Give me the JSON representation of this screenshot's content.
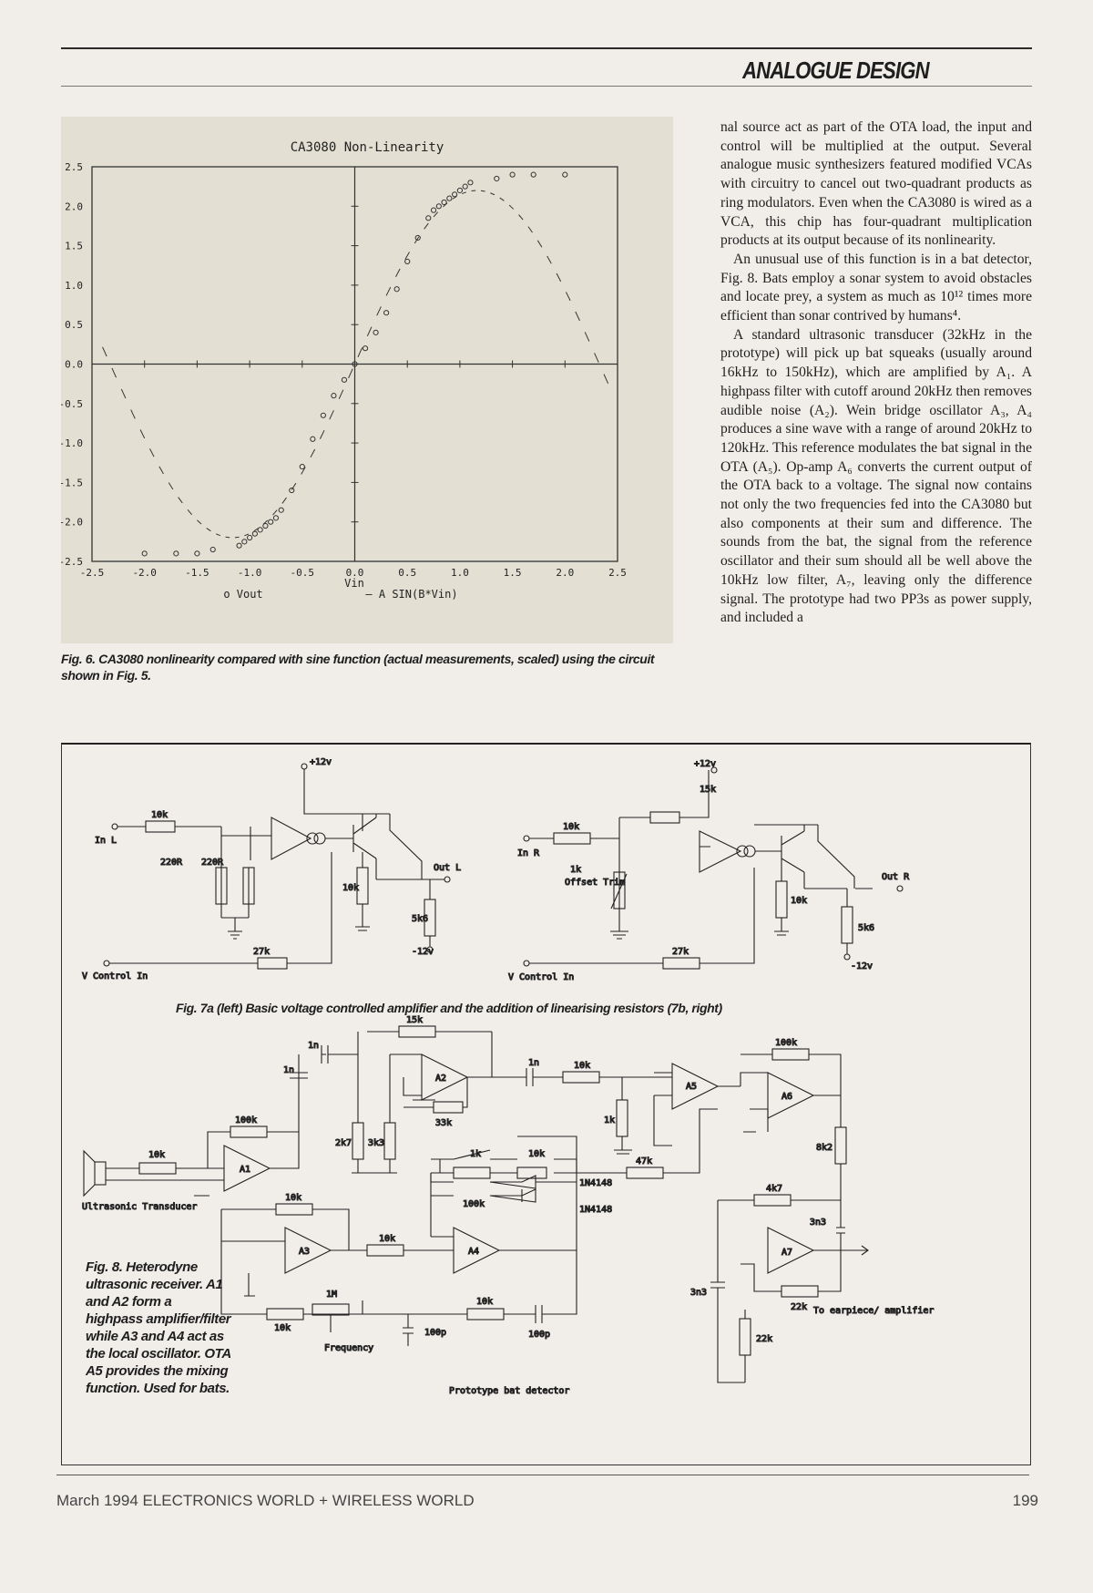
{
  "header": {
    "section": "ANALOGUE DESIGN"
  },
  "chart_data": {
    "type": "scatter",
    "title": "CA3080 Non-Linearity",
    "xlabel": "Vin",
    "xlim": [
      -2.5,
      2.5
    ],
    "ylim": [
      -2.5,
      2.5
    ],
    "x_ticks": [
      "-2.5",
      "-2.0",
      "-1.5",
      "-1.0",
      "-0.5",
      "0.0",
      "0.5",
      "1.0",
      "1.5",
      "2.0",
      "2.5"
    ],
    "y_ticks": [
      "2.5",
      "2.0",
      "1.5",
      "1.0",
      "0.5",
      "0.0",
      "-0.5",
      "-1.0",
      "-1.5",
      "-2.0",
      "-2.5"
    ],
    "series": [
      {
        "name": "Vout",
        "marker": "o",
        "x": [
          -2.0,
          -1.7,
          -1.5,
          -1.35,
          -1.1,
          -1.05,
          -1.0,
          -0.95,
          -0.9,
          -0.85,
          -0.8,
          -0.75,
          -0.7,
          -0.6,
          -0.5,
          -0.4,
          -0.3,
          -0.2,
          -0.1,
          0.0,
          0.1,
          0.2,
          0.3,
          0.4,
          0.5,
          0.6,
          0.7,
          0.75,
          0.8,
          0.85,
          0.9,
          0.95,
          1.0,
          1.05,
          1.1,
          1.35,
          1.5,
          1.7,
          2.0
        ],
        "y": [
          -2.4,
          -2.4,
          -2.4,
          -2.35,
          -2.3,
          -2.25,
          -2.2,
          -2.15,
          -2.1,
          -2.05,
          -2.0,
          -1.95,
          -1.85,
          -1.6,
          -1.3,
          -0.95,
          -0.65,
          -0.4,
          -0.2,
          0.0,
          0.2,
          0.4,
          0.65,
          0.95,
          1.3,
          1.6,
          1.85,
          1.95,
          2.0,
          2.05,
          2.1,
          2.15,
          2.2,
          2.25,
          2.3,
          2.35,
          2.4,
          2.4,
          2.4
        ]
      },
      {
        "name": "A SIN(B*Vin)",
        "marker": "-",
        "amplitude": 2.2,
        "frequency": 1.35
      }
    ],
    "legend": [
      "o Vout",
      "— A SIN(B*Vin)"
    ]
  },
  "captions": {
    "fig6": "Fig. 6. CA3080 nonlinearity compared with sine function (actual measurements, scaled) using the circuit shown in Fig. 5.",
    "fig7": "Fig. 7a (left) Basic voltage controlled amplifier and the addition of linearising resistors (7b, right)",
    "fig8": "Fig. 8. Heterodyne ultrasonic receiver. A1 and A2 form a highpass amplifier/filter while A3 and A4 act as the local oscillator. OTA A5 provides the mixing function. Used for bats."
  },
  "body": {
    "p1": "nal source act as part of the OTA load, the input and control will be multiplied at the output. Several analogue music synthesizers featured modified VCAs with circuitry to cancel out two-quadrant products as ring modulators. Even when the CA3080 is wired as a VCA, this chip has four-quadrant multiplication products at its output because of its nonlinearity.",
    "p2": "An unusual use of this function is in a bat detector, Fig. 8. Bats employ a sonar system to avoid obstacles and locate prey, a system as much as 10¹² times more efficient than sonar contrived by humans⁴.",
    "p3": "A standard ultrasonic transducer (32kHz in the prototype) will pick up bat squeaks (usually around 16kHz to 150kHz), which are amplified by A₁. A highpass filter with cutoff around 20kHz then removes audible noise (A₂). Wein bridge oscillator A₃, A₄ produces a sine wave with a range of around 20kHz to 120kHz. This reference modulates the bat signal in the OTA (A₅). Op-amp A₆ converts the current output of the OTA back to a voltage. The signal now contains not only the two frequencies fed into the CA3080 but also components at their sum and difference. The sounds from the bat, the signal from the reference oscillator and their sum should all be well above the 10kHz low filter, A₇, leaving only the difference signal. The prototype had two PP3s as power supply, and included a"
  },
  "schematic7": {
    "left": {
      "in": "In L",
      "r_in": "10k",
      "r1": "220R",
      "r2": "220R",
      "supply": "+12v",
      "out": "Out L",
      "r_load": "10k",
      "r_emit": "5k6",
      "neg": "-12v",
      "r_ctrl": "27k",
      "ctrl": "V Control In"
    },
    "right": {
      "in": "In R",
      "r_in": "10k",
      "r_fb": "15k",
      "supply": "+12v",
      "trim": "1k",
      "trim_label": "Offset Trim",
      "out": "Out R",
      "r_load": "10k",
      "r_emit": "5k6",
      "neg": "-12v",
      "r_ctrl": "27k",
      "ctrl": "V Control In"
    }
  },
  "schematic8": {
    "title": "Prototype bat detector",
    "transducer": "Ultrasonic Transducer",
    "labels": {
      "a1": "A1",
      "a2": "A2",
      "a3": "A3",
      "a4": "A4",
      "a5": "A5",
      "a6": "A6",
      "a7": "A7"
    },
    "parts": {
      "r10k_in": "10k",
      "r100k_a1": "100k",
      "c1n_a": "1n",
      "c1n_b": "1n",
      "r15k": "15k",
      "r33k": "33k",
      "r2k7": "2k7",
      "r3k3": "3k3",
      "c1n_c": "1n",
      "r10k_a5": "10k",
      "r1k_a5": "1k",
      "r100k_a6": "100k",
      "r8k2": "8k2",
      "r4k7": "4k7",
      "c3n3_a": "3n3",
      "c3n3_b": "3n3",
      "r22k_a": "22k",
      "r22k_b": "22k",
      "out": "To earpiece/ amplifier",
      "r10k_a3": "10k",
      "r10k_a3b": "10k",
      "r10k_a4in": "10k",
      "r1k_trim": "1k",
      "r10k_d": "10k",
      "r100k_d": "100k",
      "d1": "1N4148",
      "d2": "1N4148",
      "r47k": "47k",
      "r1M": "1M",
      "frequency": "Frequency",
      "r10k_bot": "10k",
      "r10k_bot2": "10k",
      "c100p_a": "100p",
      "c100p_b": "100p"
    }
  },
  "footer": {
    "journal": "March 1994 ELECTRONICS WORLD + WIRELESS WORLD",
    "page": "199"
  }
}
